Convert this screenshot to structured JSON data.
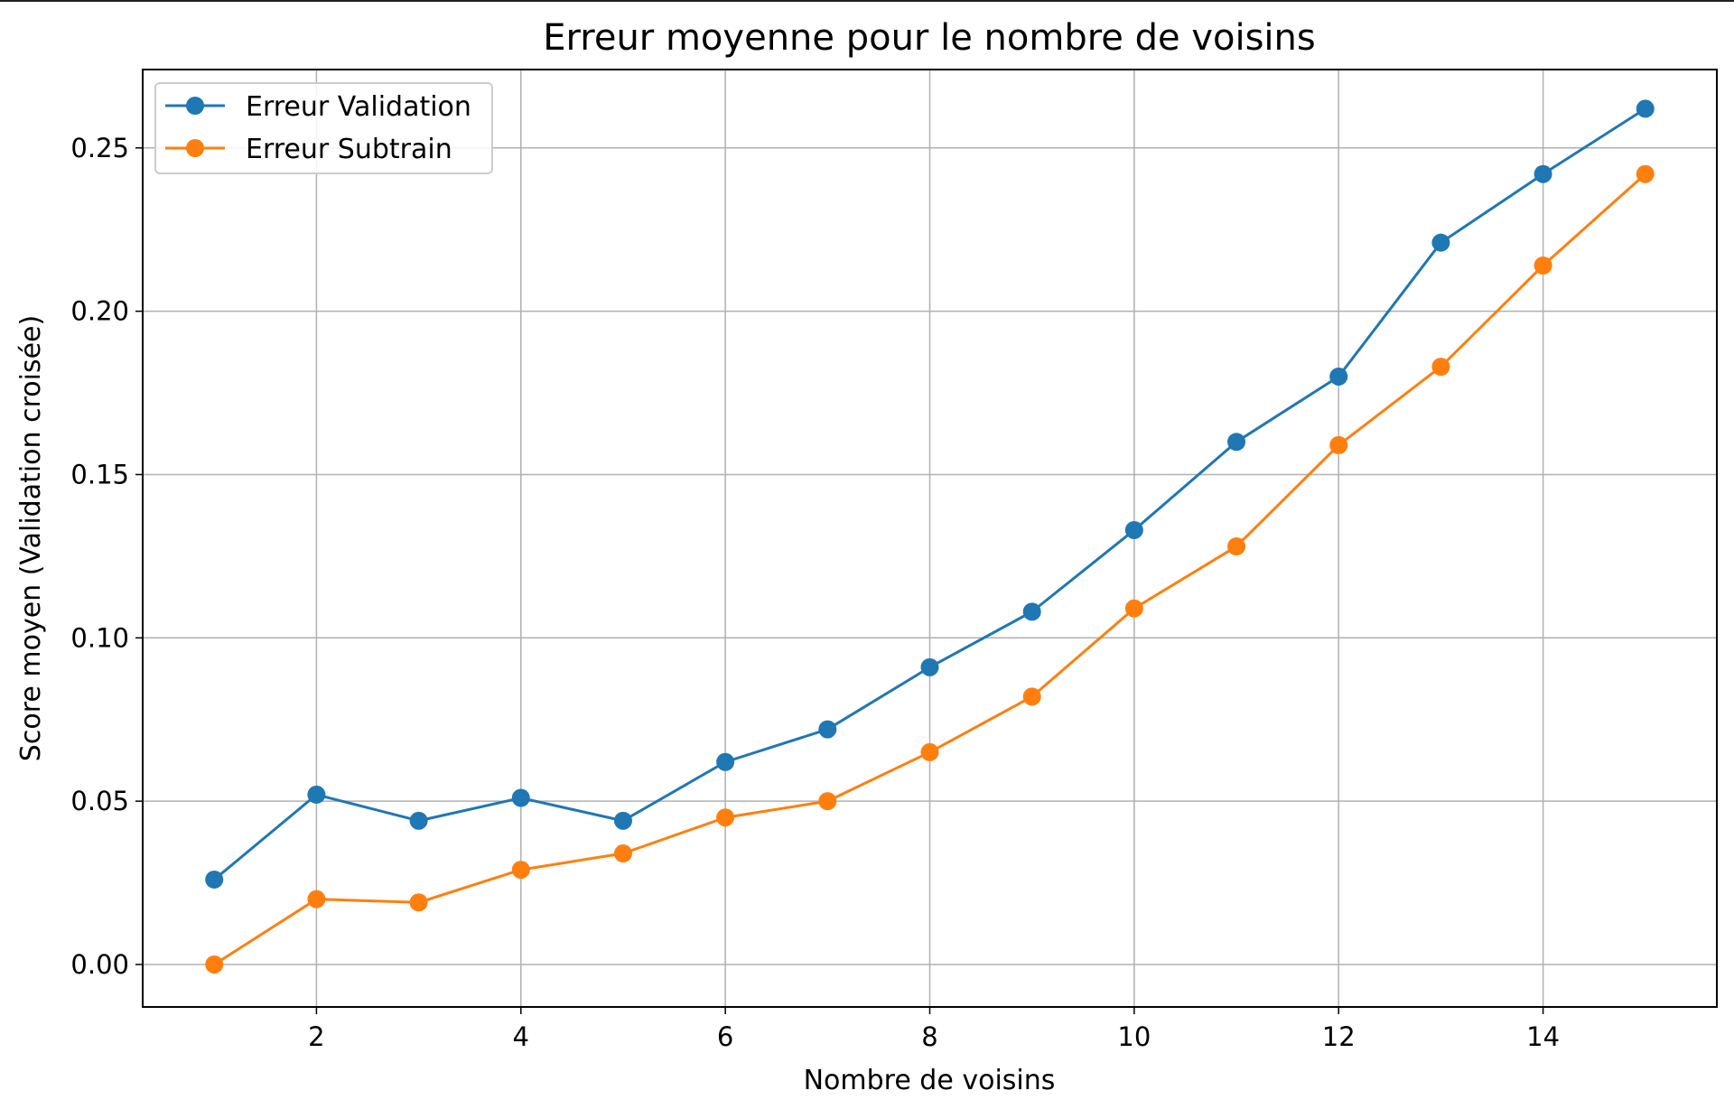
{
  "chart_data": {
    "type": "line",
    "title": "Erreur moyenne pour le nombre de voisins",
    "xlabel": "Nombre de voisins",
    "ylabel": "Score moyen (Validation croisée)",
    "xlim": [
      0.3,
      15.7
    ],
    "ylim": [
      -0.013,
      0.274
    ],
    "xticks": [
      2,
      4,
      6,
      8,
      10,
      12,
      14
    ],
    "xtick_labels": [
      "2",
      "4",
      "6",
      "8",
      "10",
      "12",
      "14"
    ],
    "yticks": [
      0.0,
      0.05,
      0.1,
      0.15,
      0.2,
      0.25
    ],
    "ytick_labels": [
      "0.00",
      "0.05",
      "0.10",
      "0.15",
      "0.20",
      "0.25"
    ],
    "grid": true,
    "legend_position": "top-left",
    "x": [
      1,
      2,
      3,
      4,
      5,
      6,
      7,
      8,
      9,
      10,
      11,
      12,
      13,
      14,
      15
    ],
    "series": [
      {
        "name": "Erreur Validation",
        "color": "#1f77b4",
        "marker": "circle",
        "values": [
          0.026,
          0.052,
          0.044,
          0.051,
          0.044,
          0.062,
          0.072,
          0.091,
          0.108,
          0.133,
          0.16,
          0.18,
          0.221,
          0.242,
          0.262
        ]
      },
      {
        "name": "Erreur Subtrain",
        "color": "#ff7f0e",
        "marker": "circle",
        "values": [
          0.0,
          0.02,
          0.019,
          0.029,
          0.034,
          0.045,
          0.05,
          0.065,
          0.082,
          0.109,
          0.128,
          0.159,
          0.183,
          0.214,
          0.242
        ]
      }
    ]
  }
}
